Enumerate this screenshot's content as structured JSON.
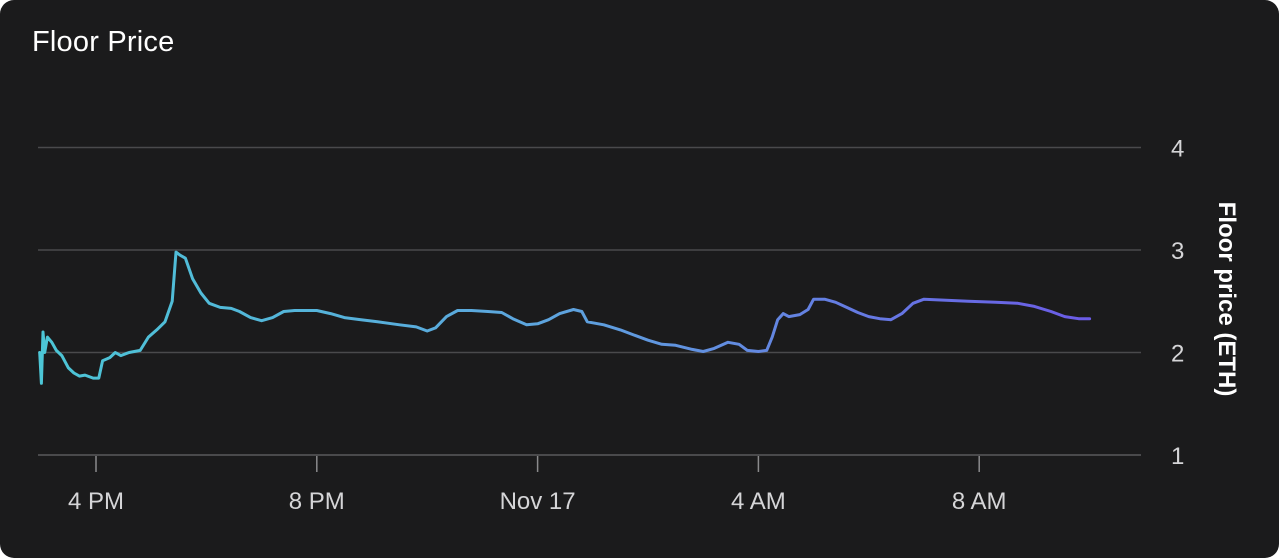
{
  "panel": {
    "title": "Floor Price"
  },
  "chart_data": {
    "type": "line",
    "ylabel": "Floor price (ETH)",
    "ylim": [
      1,
      4
    ],
    "yticks": [
      "1",
      "2",
      "3",
      "4"
    ],
    "xticks": [
      "4 PM",
      "8 PM",
      "Nov 17",
      "4 AM",
      "8 AM"
    ],
    "grid": true,
    "y_axis_side": "right",
    "colors": {
      "start": "#4cc6d6",
      "end": "#6b5be6",
      "grid": "#4a4a4c"
    },
    "series": [
      {
        "values": [
          [
            14.98,
            2.0
          ],
          [
            15.01,
            1.7
          ],
          [
            15.04,
            2.2
          ],
          [
            15.07,
            2.0
          ],
          [
            15.12,
            2.15
          ],
          [
            15.2,
            2.1
          ],
          [
            15.28,
            2.02
          ],
          [
            15.38,
            1.97
          ],
          [
            15.5,
            1.85
          ],
          [
            15.6,
            1.8
          ],
          [
            15.7,
            1.77
          ],
          [
            15.8,
            1.78
          ],
          [
            15.95,
            1.75
          ],
          [
            16.05,
            1.75
          ],
          [
            16.12,
            1.92
          ],
          [
            16.25,
            1.95
          ],
          [
            16.35,
            2.0
          ],
          [
            16.45,
            1.97
          ],
          [
            16.6,
            2.0
          ],
          [
            16.8,
            2.02
          ],
          [
            16.95,
            2.15
          ],
          [
            17.1,
            2.22
          ],
          [
            17.25,
            2.3
          ],
          [
            17.38,
            2.5
          ],
          [
            17.45,
            2.98
          ],
          [
            17.52,
            2.95
          ],
          [
            17.62,
            2.92
          ],
          [
            17.75,
            2.72
          ],
          [
            17.9,
            2.58
          ],
          [
            18.05,
            2.48
          ],
          [
            18.25,
            2.44
          ],
          [
            18.45,
            2.43
          ],
          [
            18.6,
            2.4
          ],
          [
            18.8,
            2.34
          ],
          [
            19.0,
            2.31
          ],
          [
            19.2,
            2.34
          ],
          [
            19.4,
            2.4
          ],
          [
            19.6,
            2.41
          ],
          [
            19.8,
            2.41
          ],
          [
            20.0,
            2.41
          ],
          [
            20.25,
            2.38
          ],
          [
            20.5,
            2.34
          ],
          [
            20.8,
            2.32
          ],
          [
            21.1,
            2.3
          ],
          [
            21.5,
            2.27
          ],
          [
            21.8,
            2.25
          ],
          [
            22.0,
            2.21
          ],
          [
            22.15,
            2.24
          ],
          [
            22.35,
            2.35
          ],
          [
            22.55,
            2.41
          ],
          [
            22.8,
            2.41
          ],
          [
            23.1,
            2.4
          ],
          [
            23.35,
            2.39
          ],
          [
            23.55,
            2.33
          ],
          [
            23.8,
            2.27
          ],
          [
            24.0,
            2.28
          ],
          [
            24.2,
            2.32
          ],
          [
            24.4,
            2.38
          ],
          [
            24.65,
            2.42
          ],
          [
            24.8,
            2.4
          ],
          [
            24.9,
            2.3
          ],
          [
            25.2,
            2.27
          ],
          [
            25.5,
            2.22
          ],
          [
            25.75,
            2.17
          ],
          [
            26.0,
            2.12
          ],
          [
            26.25,
            2.08
          ],
          [
            26.5,
            2.07
          ],
          [
            26.8,
            2.03
          ],
          [
            27.0,
            2.01
          ],
          [
            27.2,
            2.04
          ],
          [
            27.45,
            2.1
          ],
          [
            27.65,
            2.08
          ],
          [
            27.8,
            2.02
          ],
          [
            28.0,
            2.01
          ],
          [
            28.15,
            2.02
          ],
          [
            28.25,
            2.15
          ],
          [
            28.35,
            2.32
          ],
          [
            28.45,
            2.38
          ],
          [
            28.55,
            2.35
          ],
          [
            28.75,
            2.37
          ],
          [
            28.9,
            2.42
          ],
          [
            29.0,
            2.52
          ],
          [
            29.2,
            2.52
          ],
          [
            29.4,
            2.49
          ],
          [
            29.6,
            2.44
          ],
          [
            29.8,
            2.39
          ],
          [
            30.0,
            2.35
          ],
          [
            30.2,
            2.33
          ],
          [
            30.4,
            2.32
          ],
          [
            30.6,
            2.38
          ],
          [
            30.8,
            2.48
          ],
          [
            31.0,
            2.52
          ],
          [
            31.4,
            2.51
          ],
          [
            31.8,
            2.5
          ],
          [
            32.3,
            2.49
          ],
          [
            32.7,
            2.48
          ],
          [
            33.0,
            2.45
          ],
          [
            33.3,
            2.4
          ],
          [
            33.55,
            2.35
          ],
          [
            33.8,
            2.33
          ],
          [
            34.0,
            2.33
          ]
        ]
      }
    ]
  }
}
